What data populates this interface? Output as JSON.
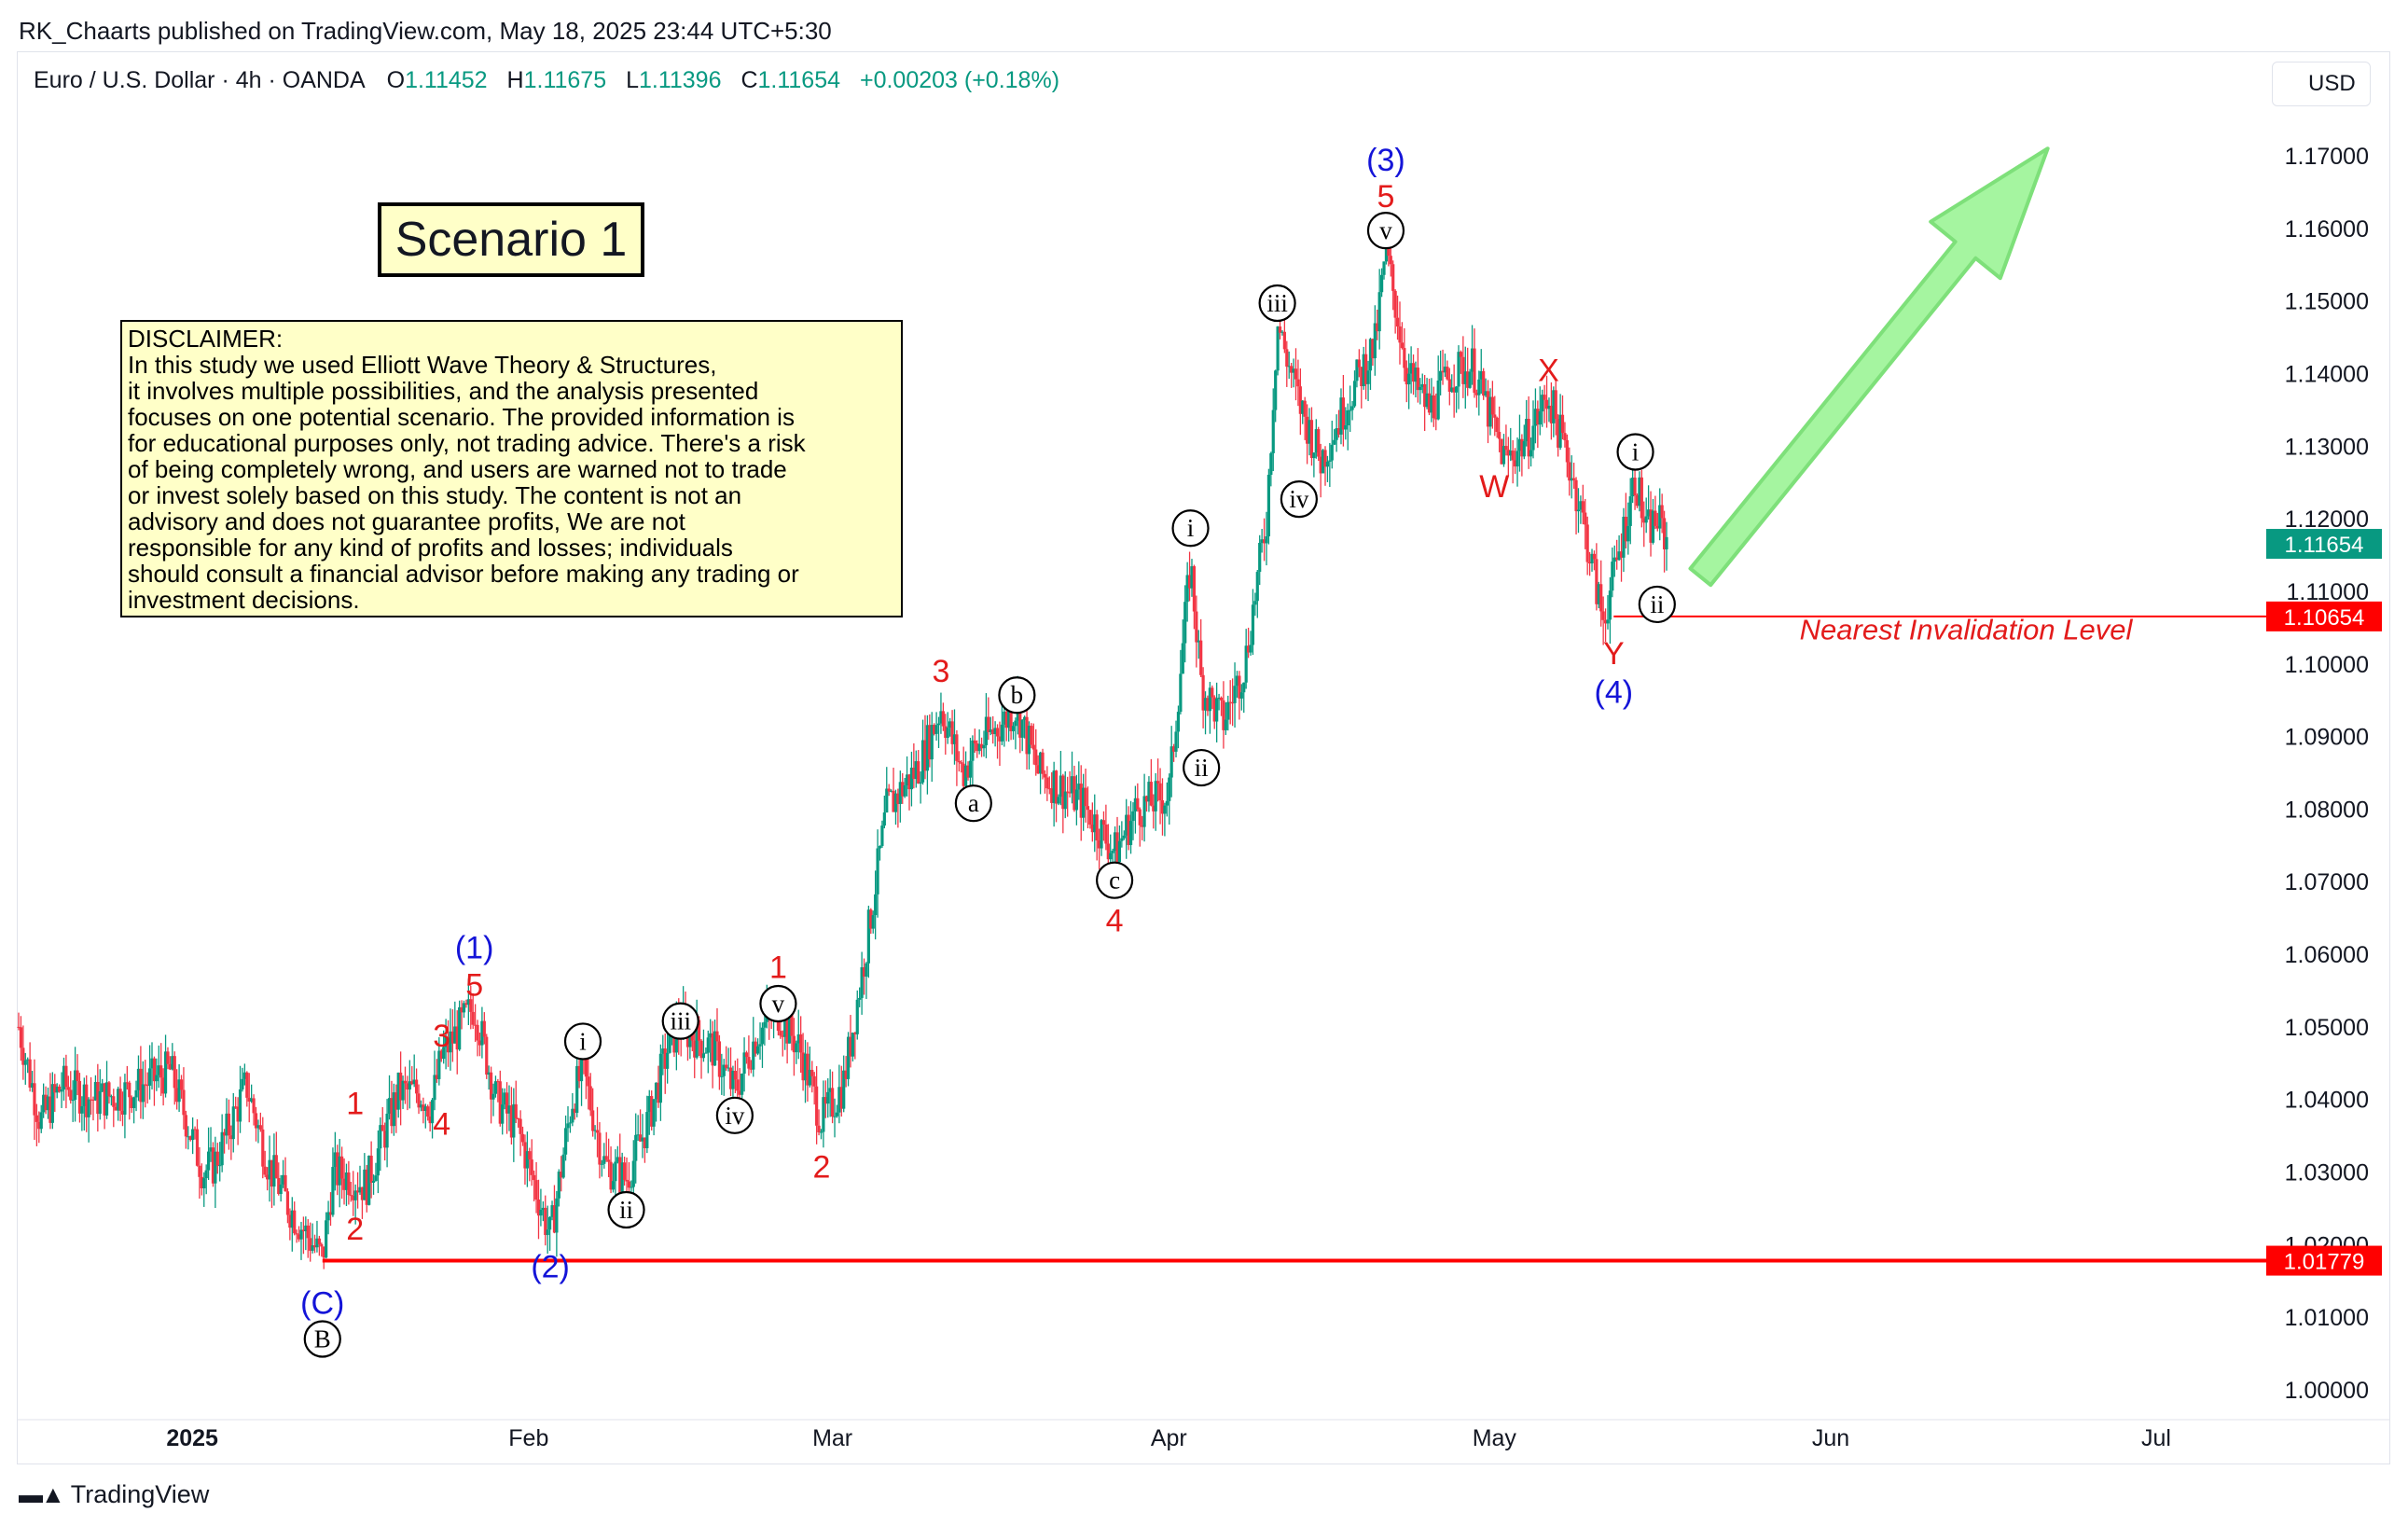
{
  "header": {
    "published": "RK_Chaarts published on TradingView.com, May 18, 2025 23:44 UTC+5:30"
  },
  "legend": {
    "symbol": "Euro / U.S. Dollar · 4h · OANDA",
    "o_label": "O",
    "o": "1.11452",
    "h_label": "H",
    "h": "1.11675",
    "l_label": "L",
    "l": "1.11396",
    "c_label": "C",
    "c": "1.11654",
    "change": "+0.00203 (+0.18%)"
  },
  "currency_button": "USD",
  "scenario_title": "Scenario 1",
  "disclaimer_lines": [
    "DISCLAIMER:",
    "In this study we used Elliott Wave Theory & Structures,",
    "it involves multiple possibilities, and the analysis presented",
    "focuses on one potential scenario. The provided information is",
    "for educational purposes only, not trading advice. There's a risk",
    "of being completely wrong, and users are warned not to trade",
    "or invest solely based on this study. The content is not an",
    "advisory and does not guarantee profits, We are not",
    "responsible for any kind of profits and losses; individuals",
    "should consult a financial advisor before making any trading or",
    "investment decisions."
  ],
  "invalidation_label": "Nearest Invalidation Level",
  "footer": {
    "brand": "TradingView"
  },
  "colors": {
    "up": "#089981",
    "down": "#f23645",
    "wave_red": "#e31b1b",
    "wave_blue": "#1414d8",
    "arrow_fill": "#a5f5a0",
    "arrow_stroke": "#7ee07a",
    "hline": "#ff0000"
  },
  "chart_data": {
    "type": "candlestick",
    "instrument": "Euro / U.S. Dollar",
    "timeframe": "4h",
    "ylim": [
      0.995,
      1.176
    ],
    "y_ticks": [
      "1.17000",
      "1.16000",
      "1.15000",
      "1.14000",
      "1.13000",
      "1.12000",
      "1.11000",
      "1.10000",
      "1.09000",
      "1.08000",
      "1.07000",
      "1.06000",
      "1.05000",
      "1.04000",
      "1.03000",
      "1.02000",
      "1.01000",
      "1.00000"
    ],
    "x_ticks": [
      {
        "label": "2025",
        "date": "2025-01-01",
        "bold": true
      },
      {
        "label": "Feb",
        "date": "2025-02-01"
      },
      {
        "label": "Mar",
        "date": "2025-03-01"
      },
      {
        "label": "Apr",
        "date": "2025-04-01"
      },
      {
        "label": "May",
        "date": "2025-05-01"
      },
      {
        "label": "Jun",
        "date": "2025-06-01"
      },
      {
        "label": "Jul",
        "date": "2025-07-01"
      }
    ],
    "xlim": [
      "2024-12-16",
      "2025-07-12"
    ],
    "price_path": [
      [
        "2024-12-16",
        1.05
      ],
      [
        "2024-12-18",
        1.037
      ],
      [
        "2024-12-20",
        1.042
      ],
      [
        "2024-12-23",
        1.04
      ],
      [
        "2024-12-26",
        1.041
      ],
      [
        "2024-12-30",
        1.044
      ],
      [
        "2025-01-02",
        1.03
      ],
      [
        "2025-01-03",
        1.031
      ],
      [
        "2025-01-06",
        1.042
      ],
      [
        "2025-01-08",
        1.031
      ],
      [
        "2025-01-10",
        1.025
      ],
      [
        "2025-01-13",
        1.018
      ],
      [
        "2025-01-14",
        1.03
      ],
      [
        "2025-01-16",
        1.029
      ],
      [
        "2025-01-17",
        1.028
      ],
      [
        "2025-01-20",
        1.041
      ],
      [
        "2025-01-22",
        1.041
      ],
      [
        "2025-01-23",
        1.039
      ],
      [
        "2025-01-24",
        1.046
      ],
      [
        "2025-01-27",
        1.053
      ],
      [
        "2025-01-29",
        1.04
      ],
      [
        "2025-01-31",
        1.036
      ],
      [
        "2025-02-03",
        1.021
      ],
      [
        "2025-02-05",
        1.04
      ],
      [
        "2025-02-06",
        1.044
      ],
      [
        "2025-02-08",
        1.031
      ],
      [
        "2025-02-10",
        1.029
      ],
      [
        "2025-02-12",
        1.037
      ],
      [
        "2025-02-14",
        1.048
      ],
      [
        "2025-02-15",
        1.05
      ],
      [
        "2025-02-18",
        1.047
      ],
      [
        "2025-02-20",
        1.041
      ],
      [
        "2025-02-22",
        1.049
      ],
      [
        "2025-02-24",
        1.052
      ],
      [
        "2025-02-26",
        1.047
      ],
      [
        "2025-02-28",
        1.037
      ],
      [
        "2025-03-02",
        1.042
      ],
      [
        "2025-03-04",
        1.06
      ],
      [
        "2025-03-06",
        1.08
      ],
      [
        "2025-03-09",
        1.086
      ],
      [
        "2025-03-11",
        1.094
      ],
      [
        "2025-03-13",
        1.085
      ],
      [
        "2025-03-14",
        1.088
      ],
      [
        "2025-03-18",
        1.094
      ],
      [
        "2025-03-20",
        1.085
      ],
      [
        "2025-03-24",
        1.081
      ],
      [
        "2025-03-27",
        1.074
      ],
      [
        "2025-03-29",
        1.08
      ],
      [
        "2025-04-01",
        1.082
      ],
      [
        "2025-04-03",
        1.114
      ],
      [
        "2025-04-04",
        1.097
      ],
      [
        "2025-04-06",
        1.092
      ],
      [
        "2025-04-08",
        1.1
      ],
      [
        "2025-04-10",
        1.12
      ],
      [
        "2025-04-11",
        1.147
      ],
      [
        "2025-04-13",
        1.136
      ],
      [
        "2025-04-15",
        1.128
      ],
      [
        "2025-04-18",
        1.138
      ],
      [
        "2025-04-20",
        1.144
      ],
      [
        "2025-04-21",
        1.157
      ],
      [
        "2025-04-23",
        1.14
      ],
      [
        "2025-04-25",
        1.135
      ],
      [
        "2025-04-27",
        1.14
      ],
      [
        "2025-04-29",
        1.141
      ],
      [
        "2025-05-02",
        1.128
      ],
      [
        "2025-05-04",
        1.131
      ],
      [
        "2025-05-06",
        1.137
      ],
      [
        "2025-05-08",
        1.127
      ],
      [
        "2025-05-09",
        1.121
      ],
      [
        "2025-05-11",
        1.106
      ],
      [
        "2025-05-12",
        1.112
      ],
      [
        "2025-05-14",
        1.126
      ],
      [
        "2025-05-15",
        1.118
      ],
      [
        "2025-05-16",
        1.12
      ],
      [
        "2025-05-17",
        1.1165
      ]
    ],
    "last_price": {
      "value": 1.11654,
      "label": "1.11654",
      "color": "#089981"
    },
    "horizontal_levels": [
      {
        "value": 1.10654,
        "label": "1.10654",
        "from": "2025-05-12",
        "color": "#ff0000"
      },
      {
        "value": 1.01779,
        "label": "1.01779",
        "from": "2025-01-13",
        "color": "#ff0000"
      }
    ],
    "wave_labels": [
      {
        "text": "(3)",
        "date": "2025-04-21",
        "price": 1.1695,
        "color": "blue"
      },
      {
        "text": "5",
        "date": "2025-04-21",
        "price": 1.1645,
        "color": "red"
      },
      {
        "text": "v",
        "date": "2025-04-21",
        "price": 1.1597,
        "circled": true
      },
      {
        "text": "iii",
        "date": "2025-04-11",
        "price": 1.1497,
        "circled": true
      },
      {
        "text": "iv",
        "date": "2025-04-13",
        "price": 1.1227,
        "circled": true
      },
      {
        "text": "i",
        "date": "2025-04-03",
        "price": 1.1187,
        "circled": true
      },
      {
        "text": "ii",
        "date": "2025-04-04",
        "price": 1.0857,
        "circled": true
      },
      {
        "text": "X",
        "date": "2025-05-06",
        "price": 1.1405,
        "color": "red"
      },
      {
        "text": "W",
        "date": "2025-05-01",
        "price": 1.1245,
        "color": "red"
      },
      {
        "text": "i",
        "date": "2025-05-14",
        "price": 1.1292,
        "circled": true
      },
      {
        "text": "ii",
        "date": "2025-05-16",
        "price": 1.1082,
        "circled": true
      },
      {
        "text": "Y",
        "date": "2025-05-12",
        "price": 1.1015,
        "color": "red"
      },
      {
        "text": "(4)",
        "date": "2025-05-12",
        "price": 1.0962,
        "color": "blue"
      },
      {
        "text": "3",
        "date": "2025-03-11",
        "price": 1.0991,
        "color": "red"
      },
      {
        "text": "b",
        "date": "2025-03-18",
        "price": 1.0957,
        "circled": true
      },
      {
        "text": "a",
        "date": "2025-03-14",
        "price": 1.0808,
        "circled": true
      },
      {
        "text": "c",
        "date": "2025-03-27",
        "price": 1.0702,
        "circled": true
      },
      {
        "text": "4",
        "date": "2025-03-27",
        "price": 1.0647,
        "color": "red"
      },
      {
        "text": "(1)",
        "date": "2025-01-27",
        "price": 1.061,
        "color": "blue"
      },
      {
        "text": "5",
        "date": "2025-01-27",
        "price": 1.0558,
        "color": "red"
      },
      {
        "text": "3",
        "date": "2025-01-24",
        "price": 1.0488,
        "color": "red"
      },
      {
        "text": "4",
        "date": "2025-01-24",
        "price": 1.0367,
        "color": "red"
      },
      {
        "text": "1",
        "date": "2025-01-16",
        "price": 1.0395,
        "color": "red"
      },
      {
        "text": "2",
        "date": "2025-01-16",
        "price": 1.0222,
        "color": "red"
      },
      {
        "text": "i",
        "date": "2025-02-06",
        "price": 1.048,
        "circled": true
      },
      {
        "text": "ii",
        "date": "2025-02-10",
        "price": 1.0248,
        "circled": true
      },
      {
        "text": "iii",
        "date": "2025-02-15",
        "price": 1.0508,
        "circled": true
      },
      {
        "text": "iv",
        "date": "2025-02-20",
        "price": 1.0378,
        "circled": true
      },
      {
        "text": "1",
        "date": "2025-02-24",
        "price": 1.0583,
        "color": "red"
      },
      {
        "text": "v",
        "date": "2025-02-24",
        "price": 1.0532,
        "circled": true
      },
      {
        "text": "2",
        "date": "2025-02-28",
        "price": 1.0308,
        "color": "red"
      },
      {
        "text": "(2)",
        "date": "2025-02-03",
        "price": 1.017,
        "color": "blue"
      },
      {
        "text": "(C)",
        "date": "2025-01-13",
        "price": 1.012,
        "color": "blue"
      },
      {
        "text": "B",
        "date": "2025-01-13",
        "price": 1.007,
        "circled": true
      }
    ],
    "projection_arrow": {
      "from": {
        "date": "2025-05-20",
        "price": 1.112
      },
      "to": {
        "date": "2025-06-21",
        "price": 1.171
      }
    }
  }
}
